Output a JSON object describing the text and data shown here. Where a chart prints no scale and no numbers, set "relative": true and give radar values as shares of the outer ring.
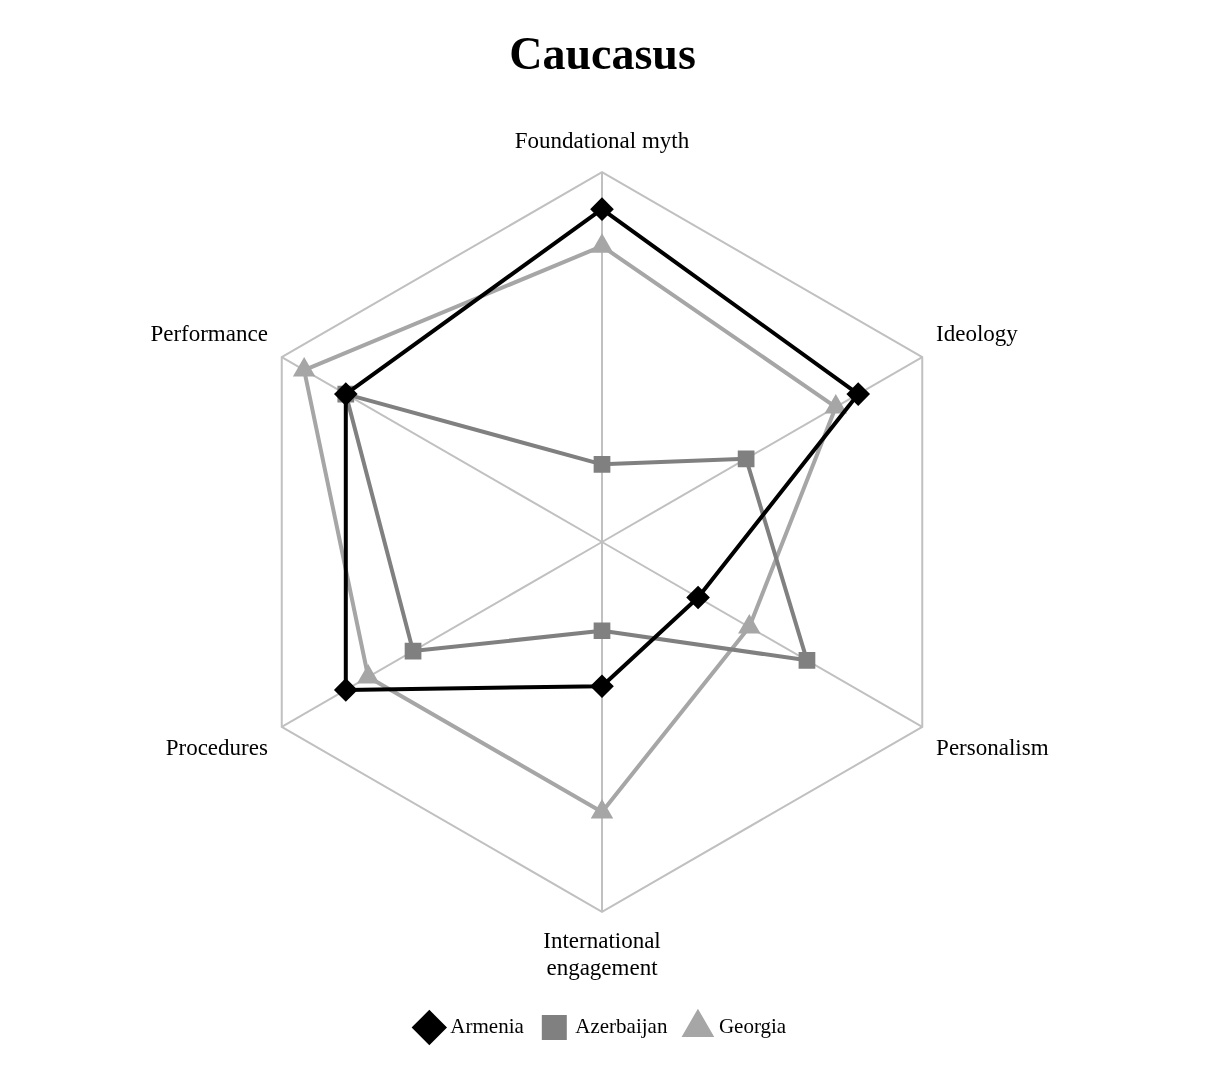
{
  "chart_data": {
    "type": "radar",
    "title": "Caucasus",
    "relative": true,
    "categories": [
      "Foundational myth",
      "Ideology",
      "Personalism",
      "International engagement",
      "Procedures",
      "Performance"
    ],
    "series": [
      {
        "name": "Armenia",
        "color": "#000000",
        "marker": "diamond",
        "values": [
          0.9,
          0.8,
          0.3,
          0.39,
          0.8,
          0.8
        ]
      },
      {
        "name": "Azerbaijan",
        "color": "#808080",
        "marker": "square",
        "values": [
          0.21,
          0.45,
          0.64,
          0.24,
          0.59,
          0.8
        ]
      },
      {
        "name": "Georgia",
        "color": "#a6a6a6",
        "marker": "triangle",
        "values": [
          0.8,
          0.73,
          0.46,
          0.73,
          0.73,
          0.93
        ]
      }
    ],
    "grid": true,
    "legend": "bottom"
  }
}
